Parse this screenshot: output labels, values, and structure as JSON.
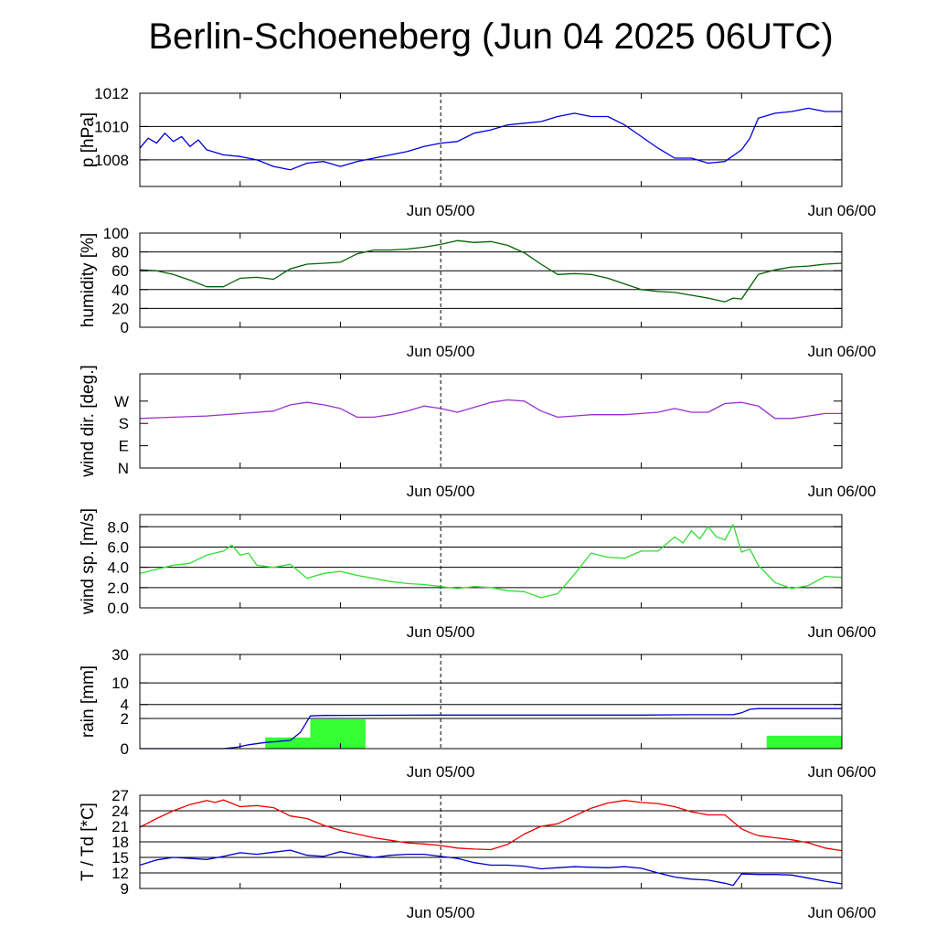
{
  "title": "Berlin-Schoeneberg (Jun 04 2025 06UTC)",
  "x_ticks": [
    "Jun 05/00",
    "Jun 06/00"
  ],
  "colors": {
    "pressure": "#0000dd",
    "humidity": "#006400",
    "wind_dir": "#9932cc",
    "wind_speed": "#33dd33",
    "rain_bar": "#33ff33",
    "rain_cum": "#0000cc",
    "temperature": "#ee0000",
    "dewpoint": "#0000cc"
  },
  "chart_data": [
    {
      "type": "line",
      "id": "pressure",
      "ylabel": "p [hPa]",
      "ylim": [
        1006.4,
        1012.0
      ],
      "ticks": [
        1008,
        1010,
        1012
      ],
      "tick_labels": [
        "1008",
        "1010",
        "1012"
      ],
      "grid_lines": [
        1008,
        1010,
        1012
      ],
      "x_range_hours": [
        0,
        42
      ],
      "x_tick_hours": [
        18,
        42
      ],
      "series": [
        {
          "name": "",
          "color_key": "pressure",
          "x": [
            0,
            0.5,
            1,
            1.5,
            2,
            2.5,
            3,
            3.5,
            4,
            5,
            6,
            7,
            8,
            9,
            10,
            11,
            12,
            13,
            14,
            15,
            16,
            17,
            18,
            19,
            20,
            21,
            22,
            23,
            24,
            25,
            26,
            27,
            28,
            29,
            30,
            31,
            32,
            33,
            34,
            35,
            36,
            36.5,
            37,
            38,
            39,
            40,
            41,
            42
          ],
          "y": [
            1008.7,
            1009.3,
            1009.0,
            1009.6,
            1009.1,
            1009.4,
            1008.8,
            1009.2,
            1008.6,
            1008.3,
            1008.2,
            1008.0,
            1007.6,
            1007.4,
            1007.8,
            1007.9,
            1007.6,
            1007.9,
            1008.1,
            1008.3,
            1008.5,
            1008.8,
            1009.0,
            1009.1,
            1009.6,
            1009.8,
            1010.1,
            1010.2,
            1010.3,
            1010.6,
            1010.8,
            1010.6,
            1010.6,
            1010.1,
            1009.4,
            1008.7,
            1008.1,
            1008.1,
            1007.8,
            1007.9,
            1008.6,
            1009.3,
            1010.5,
            1010.8,
            1010.9,
            1011.1,
            1010.9,
            1010.9
          ]
        }
      ]
    },
    {
      "type": "line",
      "id": "humidity",
      "ylabel": "humidity [%]",
      "ylim": [
        0,
        100
      ],
      "ticks": [
        0,
        20,
        40,
        60,
        80,
        100
      ],
      "tick_labels": [
        "0",
        "20",
        "40",
        "60",
        "80",
        "100"
      ],
      "grid_lines": [
        20,
        40,
        60,
        80
      ],
      "x_range_hours": [
        0,
        42
      ],
      "x_tick_hours": [
        18,
        42
      ],
      "series": [
        {
          "name": "",
          "color_key": "humidity",
          "x": [
            0,
            1,
            2,
            3,
            4,
            5,
            6,
            7,
            8,
            9,
            10,
            11,
            12,
            13,
            14,
            15,
            16,
            17,
            18,
            19,
            20,
            21,
            22,
            23,
            24,
            25,
            26,
            27,
            28,
            29,
            30,
            31,
            32,
            33,
            34,
            35,
            35.5,
            36,
            37,
            38,
            39,
            40,
            41,
            42
          ],
          "y": [
            61,
            60,
            56,
            50,
            43,
            43,
            52,
            53,
            51,
            62,
            67,
            68,
            69,
            78,
            82,
            82,
            83,
            85,
            88,
            92,
            90,
            91,
            87,
            79,
            67,
            56,
            57,
            56,
            52,
            46,
            40,
            38,
            37,
            34,
            31,
            27,
            31,
            30,
            56,
            61,
            64,
            65,
            67,
            68
          ]
        }
      ]
    },
    {
      "type": "line",
      "id": "wind_dir",
      "ylabel": "wind dir. [deg.]",
      "ylim": [
        0,
        380
      ],
      "ticks": [
        0,
        90,
        180,
        270
      ],
      "tick_labels": [
        "N",
        "E",
        "S",
        "W"
      ],
      "grid_lines": [],
      "x_range_hours": [
        0,
        42
      ],
      "x_tick_hours": [
        18,
        42
      ],
      "series": [
        {
          "name": "",
          "color_key": "wind_dir",
          "x": [
            0,
            2,
            4,
            6,
            8,
            9,
            10,
            11,
            12,
            13,
            14,
            15,
            16,
            17,
            18,
            19,
            20,
            21,
            22,
            23,
            24,
            25,
            26,
            27,
            28,
            29,
            30,
            31,
            32,
            33,
            34,
            35,
            36,
            37,
            38,
            39,
            40,
            41,
            42
          ],
          "y": [
            200,
            205,
            210,
            220,
            230,
            255,
            265,
            255,
            240,
            205,
            205,
            215,
            230,
            250,
            240,
            225,
            245,
            265,
            275,
            270,
            230,
            205,
            210,
            215,
            215,
            215,
            220,
            225,
            240,
            225,
            225,
            260,
            265,
            250,
            200,
            200,
            210,
            220,
            220
          ]
        }
      ]
    },
    {
      "type": "line",
      "id": "wind_speed",
      "ylabel": "wind sp. [m/s]",
      "ylim": [
        0,
        9.2
      ],
      "ticks": [
        0,
        2,
        4,
        6,
        8
      ],
      "tick_labels": [
        "0.0",
        "2.0",
        "4.0",
        "6.0",
        "8.0"
      ],
      "grid_lines": [
        2,
        4,
        6,
        8
      ],
      "x_range_hours": [
        0,
        42
      ],
      "x_tick_hours": [
        18,
        42
      ],
      "series": [
        {
          "name": "",
          "color_key": "wind_speed",
          "x": [
            0,
            1,
            2,
            3,
            4,
            5,
            5.5,
            6,
            6.5,
            7,
            8,
            9,
            10,
            11,
            12,
            13,
            14,
            15,
            16,
            17,
            18,
            19,
            20,
            21,
            22,
            23,
            24,
            25,
            26,
            27,
            28,
            29,
            30,
            31,
            32,
            32.5,
            33,
            33.5,
            34,
            34.5,
            35,
            35.5,
            36,
            36.5,
            37,
            38,
            39,
            40,
            41,
            42
          ],
          "y": [
            3.4,
            3.8,
            4.2,
            4.4,
            5.2,
            5.6,
            6.2,
            5.2,
            5.4,
            4.2,
            4.0,
            4.3,
            2.9,
            3.4,
            3.6,
            3.2,
            2.9,
            2.6,
            2.4,
            2.3,
            2.1,
            1.9,
            2.1,
            2.0,
            1.7,
            1.6,
            1.0,
            1.4,
            3.3,
            5.4,
            5.0,
            4.9,
            5.6,
            5.6,
            7.0,
            6.4,
            7.6,
            6.8,
            8.0,
            7.0,
            6.7,
            8.2,
            5.5,
            5.8,
            4.2,
            2.5,
            1.9,
            2.2,
            3.1,
            3.0
          ]
        }
      ]
    },
    {
      "type": "bar",
      "id": "rain",
      "ylabel": "rain [mm]",
      "scale": "log",
      "ylim": [
        0,
        30
      ],
      "ticks": [
        0,
        2,
        4,
        10,
        30
      ],
      "tick_labels": [
        "0",
        "2",
        "4",
        "10",
        "30"
      ],
      "grid_lines": [
        2,
        4,
        10
      ],
      "x_range_hours": [
        0,
        42
      ],
      "x_tick_hours": [
        18,
        42
      ],
      "bars": [
        {
          "x_start": 7.5,
          "x_end": 10.2,
          "value": 0.5
        },
        {
          "x_start": 10.2,
          "x_end": 13.5,
          "value": 1.9
        },
        {
          "x_start": 37.5,
          "x_end": 42,
          "value": 0.6
        }
      ],
      "series": [
        {
          "name": "",
          "color_key": "rain_cum",
          "x": [
            0,
            5,
            5.8,
            6.5,
            7.5,
            9,
            9.6,
            10.2,
            11,
            18,
            26,
            30,
            33,
            35.5,
            36,
            36.5,
            37,
            38,
            42
          ],
          "y": [
            0,
            0,
            0.05,
            0.15,
            0.25,
            0.35,
            0.8,
            2.3,
            2.35,
            2.4,
            2.4,
            2.4,
            2.45,
            2.45,
            2.7,
            3.2,
            3.3,
            3.3,
            3.3
          ]
        }
      ]
    },
    {
      "type": "line",
      "id": "temperature",
      "ylabel": "T / Td [*C]",
      "ylim": [
        9,
        27
      ],
      "ticks": [
        9,
        12,
        15,
        18,
        21,
        24,
        27
      ],
      "tick_labels": [
        "9",
        "12",
        "15",
        "18",
        "21",
        "24",
        "27"
      ],
      "grid_lines": [
        12,
        15,
        18,
        21,
        24
      ],
      "x_range_hours": [
        0,
        42
      ],
      "x_tick_hours": [
        18,
        42
      ],
      "series": [
        {
          "name": "",
          "color_key": "temperature",
          "x": [
            0,
            1,
            2,
            3,
            4,
            4.5,
            5,
            6,
            7,
            8,
            9,
            10,
            11,
            12,
            13,
            14,
            15,
            16,
            17,
            18,
            19,
            20,
            21,
            22,
            23,
            24,
            25,
            26,
            27,
            28,
            29,
            30,
            31,
            32,
            33,
            34,
            35,
            36,
            36.5,
            37,
            38,
            39,
            40,
            41,
            42
          ],
          "y": [
            20.8,
            22.5,
            24.0,
            25.2,
            26.0,
            25.6,
            26.1,
            24.8,
            25.0,
            24.6,
            23.0,
            22.5,
            21.2,
            20.2,
            19.5,
            18.8,
            18.3,
            17.8,
            17.6,
            17.3,
            16.8,
            16.6,
            16.5,
            17.5,
            19.5,
            21.0,
            21.5,
            23.0,
            24.5,
            25.5,
            26.0,
            25.6,
            25.4,
            24.8,
            23.8,
            23.2,
            23.2,
            20.5,
            19.8,
            19.2,
            18.8,
            18.4,
            17.8,
            16.8,
            16.3
          ]
        },
        {
          "name": "",
          "color_key": "dewpoint",
          "x": [
            0,
            1,
            2,
            3,
            4,
            5,
            6,
            7,
            8,
            9,
            10,
            11,
            12,
            13,
            14,
            15,
            16,
            17,
            18,
            19,
            20,
            21,
            22,
            23,
            24,
            25,
            26,
            27,
            28,
            29,
            30,
            31,
            32,
            33,
            34,
            35,
            35.5,
            36,
            37,
            38,
            39,
            40,
            41,
            42
          ],
          "y": [
            13.5,
            14.5,
            15.0,
            14.8,
            14.6,
            15.2,
            15.9,
            15.6,
            16.0,
            16.4,
            15.4,
            15.2,
            16.1,
            15.5,
            15.0,
            15.4,
            15.6,
            15.6,
            15.2,
            14.8,
            14.0,
            13.5,
            13.5,
            13.3,
            12.8,
            13.0,
            13.2,
            13.1,
            13.0,
            13.2,
            12.9,
            12.0,
            11.2,
            10.8,
            10.6,
            10.0,
            9.6,
            11.8,
            11.7,
            11.7,
            11.6,
            11.0,
            10.4,
            9.9
          ]
        }
      ]
    }
  ]
}
